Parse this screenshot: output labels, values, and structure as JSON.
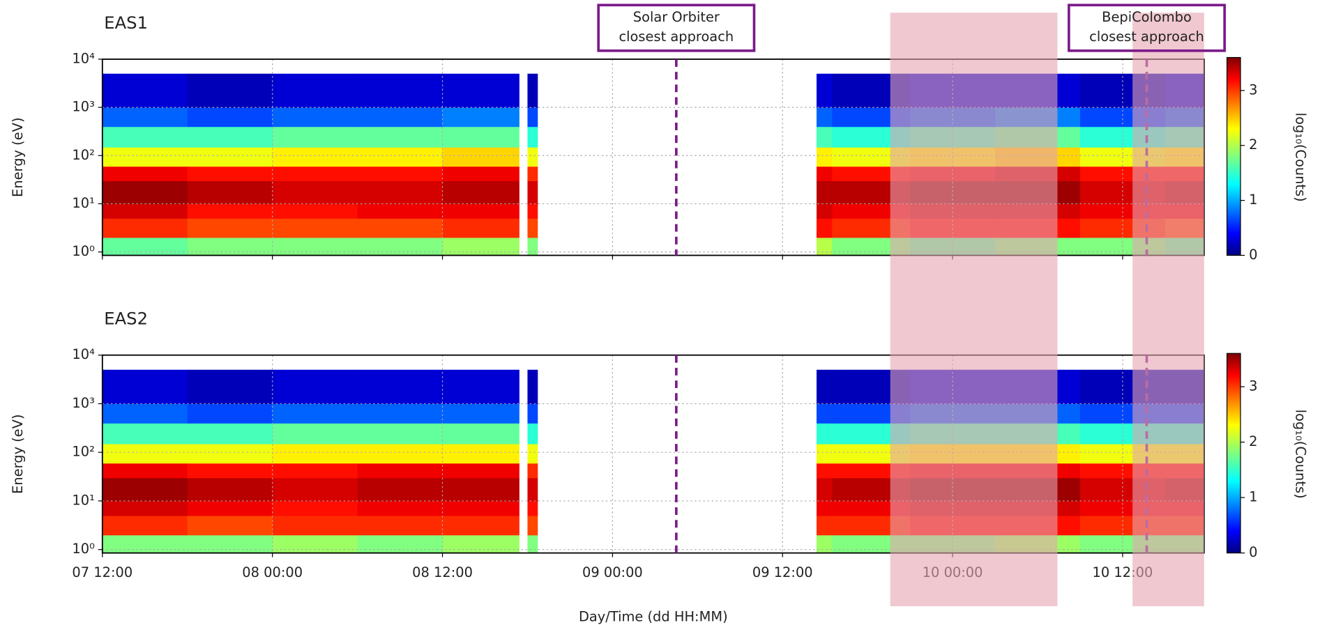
{
  "chart_data": [
    {
      "type": "heatmap",
      "title": "EAS1",
      "ylabel": "Energy (eV)",
      "colorbar_label": "log₁₀(Counts)",
      "ylog": true,
      "grid": true,
      "colormap": "jet",
      "x_edges": [
        0,
        6,
        12,
        18,
        24,
        29.4,
        30,
        30.7,
        50.4,
        51.5,
        57,
        63,
        69,
        75,
        77.75
      ],
      "y_edges": [
        0.85,
        2,
        5,
        10,
        30,
        60,
        150,
        400,
        1000,
        5000
      ],
      "values": [
        [
          1.7,
          1.8,
          1.8,
          1.8,
          1.9,
          null,
          1.8,
          null,
          2.0,
          1.8,
          1.7,
          1.8,
          1.8,
          1.7
        ],
        [
          3.0,
          2.9,
          2.9,
          2.9,
          3.0,
          null,
          2.9,
          null,
          3.1,
          3.0,
          3.1,
          3.1,
          3.0,
          2.9
        ],
        [
          3.3,
          3.1,
          3.1,
          3.2,
          3.2,
          null,
          3.1,
          null,
          3.3,
          3.2,
          3.3,
          3.3,
          3.2,
          3.2
        ],
        [
          3.5,
          3.4,
          3.3,
          3.3,
          3.4,
          null,
          3.3,
          null,
          3.4,
          3.4,
          3.5,
          3.5,
          3.3,
          3.4
        ],
        [
          3.2,
          3.1,
          3.1,
          3.1,
          3.2,
          null,
          3.0,
          null,
          3.2,
          3.1,
          3.2,
          3.3,
          3.1,
          3.1
        ],
        [
          2.2,
          2.2,
          2.3,
          2.3,
          2.4,
          null,
          2.2,
          null,
          2.3,
          2.2,
          2.3,
          2.4,
          2.2,
          2.3
        ],
        [
          1.6,
          1.6,
          1.7,
          1.7,
          1.7,
          null,
          1.5,
          null,
          1.6,
          1.5,
          1.6,
          1.7,
          1.5,
          1.6
        ],
        [
          0.8,
          0.7,
          0.8,
          0.8,
          0.9,
          null,
          0.7,
          null,
          0.8,
          0.7,
          0.8,
          0.9,
          0.7,
          0.8
        ],
        [
          0.3,
          0.2,
          0.3,
          0.3,
          0.3,
          null,
          0.2,
          null,
          0.3,
          0.2,
          0.3,
          0.3,
          0.2,
          0.3
        ]
      ],
      "xlim": [
        0,
        77.75
      ],
      "xticks": [
        0,
        12,
        24,
        36,
        48,
        60,
        72
      ],
      "ylim": [
        0.85,
        10000
      ],
      "yticks": [
        {
          "value": 1,
          "label": "10⁰"
        },
        {
          "value": 10,
          "label": "10¹"
        },
        {
          "value": 100,
          "label": "10²"
        },
        {
          "value": 1000,
          "label": "10³"
        },
        {
          "value": 10000,
          "label": "10⁴"
        }
      ],
      "clim": [
        0,
        3.6
      ],
      "cticks": [
        0,
        1,
        2,
        3
      ],
      "vlines": [
        40.5,
        73.7
      ],
      "vline_color": "#7b1a8a",
      "shaded_regions": [
        [
          55.6,
          67.4
        ],
        [
          72.7,
          77.75
        ]
      ],
      "shade_color": "#e6a3b0",
      "annotations": [
        {
          "lines": [
            "Solar Orbiter",
            "closest approach"
          ],
          "x": 40.5
        },
        {
          "lines": [
            "BepiColombo",
            "closest approach"
          ],
          "x": 73.7
        }
      ]
    },
    {
      "type": "heatmap",
      "title": "EAS2",
      "ylabel": "Energy (eV)",
      "xlabel": "Day/Time (dd HH:MM)",
      "colorbar_label": "log₁₀(Counts)",
      "ylog": true,
      "grid": true,
      "colormap": "jet",
      "x_edges": [
        0,
        6,
        12,
        18,
        24,
        29.4,
        30,
        30.7,
        50.4,
        51.5,
        57,
        63,
        69,
        75,
        77.75
      ],
      "y_edges": [
        0.85,
        2,
        5,
        10,
        30,
        60,
        150,
        400,
        1000,
        5000
      ],
      "values": [
        [
          1.8,
          1.8,
          1.9,
          1.8,
          1.9,
          null,
          1.8,
          null,
          1.9,
          1.8,
          1.8,
          1.9,
          1.8,
          1.8
        ],
        [
          3.0,
          2.9,
          3.0,
          3.0,
          3.0,
          null,
          2.9,
          null,
          3.0,
          3.0,
          3.1,
          3.1,
          3.0,
          3.0
        ],
        [
          3.3,
          3.2,
          3.1,
          3.2,
          3.2,
          null,
          3.1,
          null,
          3.2,
          3.2,
          3.3,
          3.3,
          3.2,
          3.2
        ],
        [
          3.5,
          3.4,
          3.3,
          3.4,
          3.4,
          null,
          3.3,
          null,
          3.3,
          3.4,
          3.5,
          3.5,
          3.3,
          3.4
        ],
        [
          3.2,
          3.1,
          3.1,
          3.2,
          3.2,
          null,
          3.0,
          null,
          3.1,
          3.1,
          3.2,
          3.2,
          3.1,
          3.1
        ],
        [
          2.2,
          2.2,
          2.3,
          2.3,
          2.3,
          null,
          2.2,
          null,
          2.2,
          2.2,
          2.3,
          2.3,
          2.2,
          2.2
        ],
        [
          1.6,
          1.6,
          1.7,
          1.7,
          1.7,
          null,
          1.5,
          null,
          1.5,
          1.5,
          1.6,
          1.6,
          1.5,
          1.5
        ],
        [
          0.8,
          0.7,
          0.8,
          0.8,
          0.8,
          null,
          0.7,
          null,
          0.7,
          0.7,
          0.8,
          0.8,
          0.7,
          0.7
        ],
        [
          0.3,
          0.2,
          0.3,
          0.3,
          0.3,
          null,
          0.2,
          null,
          0.2,
          0.2,
          0.3,
          0.3,
          0.2,
          0.2
        ]
      ],
      "xlim": [
        0,
        77.75
      ],
      "xticks": [
        {
          "value": 0,
          "label": "07 12:00"
        },
        {
          "value": 12,
          "label": "08 00:00"
        },
        {
          "value": 24,
          "label": "08 12:00"
        },
        {
          "value": 36,
          "label": "09 00:00"
        },
        {
          "value": 48,
          "label": "09 12:00"
        },
        {
          "value": 60,
          "label": "10 00:00"
        },
        {
          "value": 72,
          "label": "10 12:00"
        }
      ],
      "ylim": [
        0.85,
        10000
      ],
      "yticks": [
        {
          "value": 1,
          "label": "10⁰"
        },
        {
          "value": 10,
          "label": "10¹"
        },
        {
          "value": 100,
          "label": "10²"
        },
        {
          "value": 1000,
          "label": "10³"
        },
        {
          "value": 10000,
          "label": "10⁴"
        }
      ],
      "clim": [
        0,
        3.6
      ],
      "cticks": [
        0,
        1,
        2,
        3
      ],
      "vlines": [
        40.5,
        73.7
      ],
      "vline_color": "#7b1a8a"
    }
  ]
}
